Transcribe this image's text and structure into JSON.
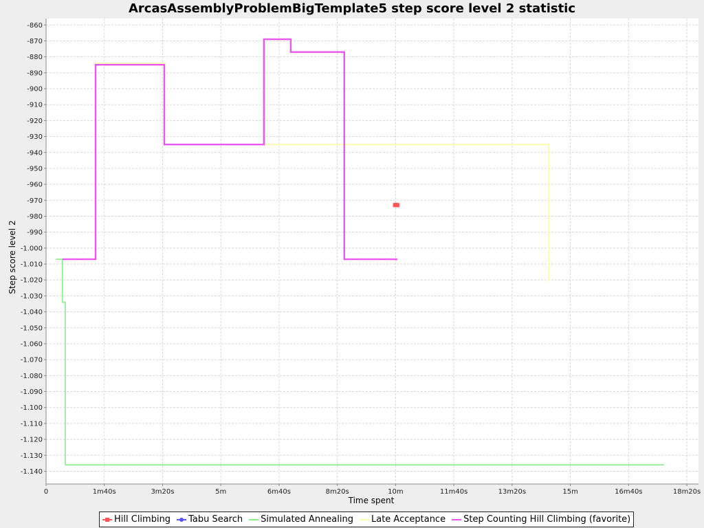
{
  "chart_data": {
    "type": "line",
    "title": "ArcasAssemblyProblemBigTemplate5 step score level 2 statistic",
    "xlabel": "Time spent",
    "ylabel": "Step score level 2",
    "xlim": [
      0,
      1120
    ],
    "ylim": [
      -1148,
      -856
    ],
    "x_unit": "seconds",
    "grid": true,
    "legend_position": "bottom",
    "x_ticks": [
      {
        "value": 0,
        "label": "0"
      },
      {
        "value": 100,
        "label": "1m40s"
      },
      {
        "value": 200,
        "label": "3m20s"
      },
      {
        "value": 300,
        "label": "5m"
      },
      {
        "value": 400,
        "label": "6m40s"
      },
      {
        "value": 500,
        "label": "8m20s"
      },
      {
        "value": 600,
        "label": "10m"
      },
      {
        "value": 700,
        "label": "11m40s"
      },
      {
        "value": 800,
        "label": "13m20s"
      },
      {
        "value": 900,
        "label": "15m"
      },
      {
        "value": 1000,
        "label": "16m40s"
      },
      {
        "value": 1100,
        "label": "18m20s"
      }
    ],
    "y_ticks": [
      {
        "value": -860,
        "label": "-860"
      },
      {
        "value": -870,
        "label": "-870"
      },
      {
        "value": -880,
        "label": "-880"
      },
      {
        "value": -890,
        "label": "-890"
      },
      {
        "value": -900,
        "label": "-900"
      },
      {
        "value": -910,
        "label": "-910"
      },
      {
        "value": -920,
        "label": "-920"
      },
      {
        "value": -930,
        "label": "-930"
      },
      {
        "value": -940,
        "label": "-940"
      },
      {
        "value": -950,
        "label": "-950"
      },
      {
        "value": -960,
        "label": "-960"
      },
      {
        "value": -970,
        "label": "-970"
      },
      {
        "value": -980,
        "label": "-980"
      },
      {
        "value": -990,
        "label": "-990"
      },
      {
        "value": -1000,
        "label": "-1.000"
      },
      {
        "value": -1010,
        "label": "-1.010"
      },
      {
        "value": -1020,
        "label": "-1.020"
      },
      {
        "value": -1030,
        "label": "-1.030"
      },
      {
        "value": -1040,
        "label": "-1.040"
      },
      {
        "value": -1050,
        "label": "-1.050"
      },
      {
        "value": -1060,
        "label": "-1.060"
      },
      {
        "value": -1070,
        "label": "-1.070"
      },
      {
        "value": -1080,
        "label": "-1.080"
      },
      {
        "value": -1090,
        "label": "-1.090"
      },
      {
        "value": -1100,
        "label": "-1.100"
      },
      {
        "value": -1110,
        "label": "-1.110"
      },
      {
        "value": -1120,
        "label": "-1.120"
      },
      {
        "value": -1130,
        "label": "-1.130"
      },
      {
        "value": -1140,
        "label": "-1.140"
      }
    ],
    "series": [
      {
        "name": "Hill Climbing",
        "color": "#ff5555",
        "marker": "square",
        "step": false,
        "points": [
          [
            599,
            -973
          ],
          [
            601,
            -973
          ],
          [
            603,
            -973
          ]
        ]
      },
      {
        "name": "Tabu Search",
        "color": "#5555ff",
        "marker": "circle",
        "step": false,
        "points": []
      },
      {
        "name": "Simulated Annealing",
        "color": "#88ee88",
        "marker": "line",
        "step": true,
        "points": [
          [
            17,
            -1007
          ],
          [
            28,
            -1007
          ],
          [
            28,
            -1034
          ],
          [
            33,
            -1034
          ],
          [
            33,
            -1136
          ],
          [
            1061,
            -1136
          ]
        ]
      },
      {
        "name": "Late Acceptance",
        "color": "#ffffaa",
        "marker": "line",
        "step": true,
        "points": [
          [
            28,
            -1007
          ],
          [
            85,
            -1007
          ],
          [
            85,
            -884
          ],
          [
            204,
            -884
          ],
          [
            204,
            -935
          ],
          [
            863,
            -935
          ],
          [
            863,
            -1021
          ]
        ]
      },
      {
        "name": "Step Counting Hill Climbing (favorite)",
        "color": "#ee55ee",
        "marker": "line",
        "step": true,
        "points": [
          [
            28,
            -1007
          ],
          [
            85,
            -1007
          ],
          [
            85,
            -885
          ],
          [
            203,
            -885
          ],
          [
            203,
            -935
          ],
          [
            374,
            -935
          ],
          [
            374,
            -869
          ],
          [
            420,
            -869
          ],
          [
            420,
            -877
          ],
          [
            512,
            -877
          ],
          [
            512,
            -1007
          ],
          [
            603,
            -1007
          ]
        ]
      }
    ]
  }
}
